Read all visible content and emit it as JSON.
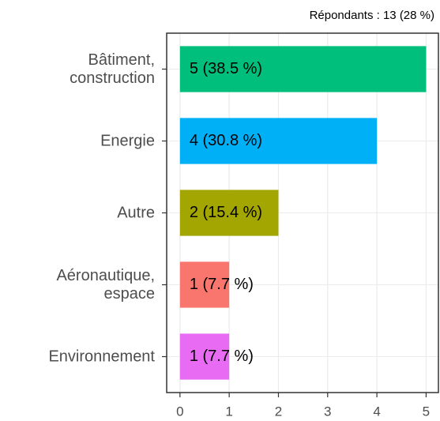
{
  "chart_data": {
    "type": "bar",
    "orientation": "horizontal",
    "subtitle": "Répondants : 13 (28 %)",
    "categories": [
      "Bâtiment,\nconstruction",
      "Energie",
      "Autre",
      "Aéronautique,\nespace",
      "Environnement"
    ],
    "values": [
      5,
      4,
      2,
      1,
      1
    ],
    "value_labels": [
      "5 (38.5 %)",
      "4 (30.8 %)",
      "2 (15.4 %)",
      "1 (7.7 %)",
      "1 (7.7 %)"
    ],
    "colors": [
      "#00BF7D",
      "#00B0F6",
      "#A3A500",
      "#F8766D",
      "#E76BF3"
    ],
    "xlim": [
      -0.27,
      5.25
    ],
    "xticks": [
      0,
      1,
      2,
      3,
      4,
      5
    ],
    "grid": true
  }
}
